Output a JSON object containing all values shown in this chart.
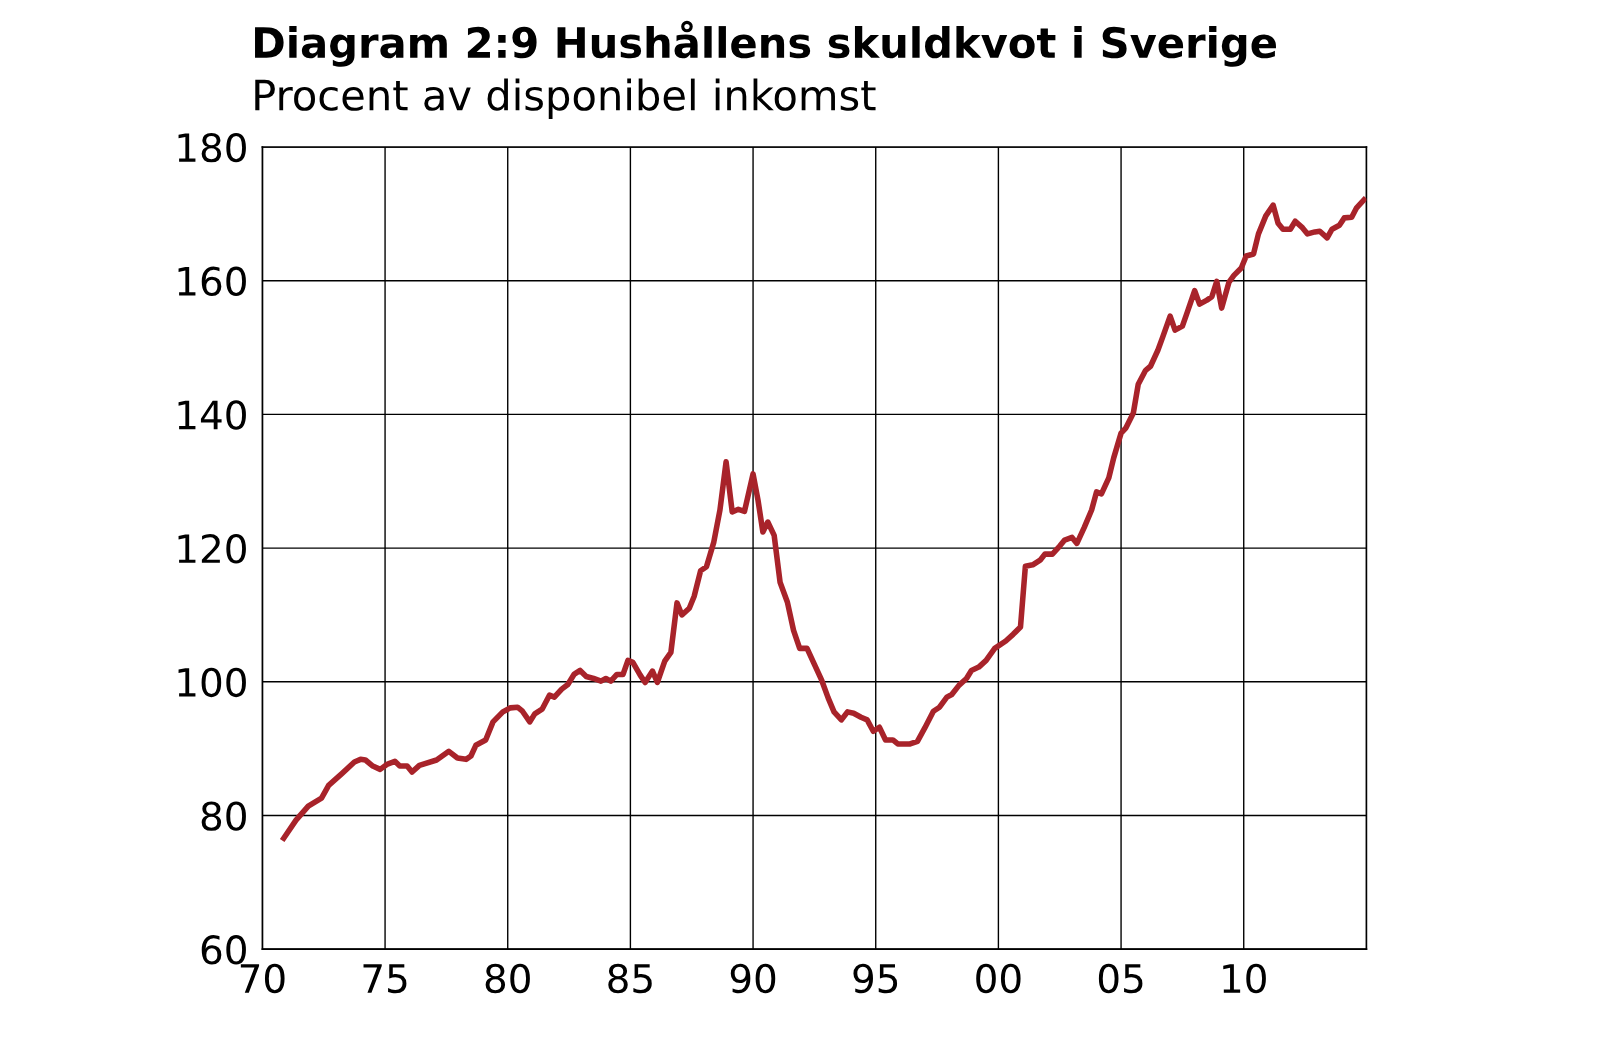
{
  "chart_data": {
    "type": "line",
    "title": "Diagram 2:9 Hushållens skuldkvot i Sverige",
    "subtitle": "Procent av disponibel inkomst",
    "xlim": [
      1970,
      2015
    ],
    "xticks": [
      {
        "value": 1970,
        "label": "70"
      },
      {
        "value": 1975,
        "label": "75"
      },
      {
        "value": 1980,
        "label": "80"
      },
      {
        "value": 1985,
        "label": "85"
      },
      {
        "value": 1990,
        "label": "90"
      },
      {
        "value": 1995,
        "label": "95"
      },
      {
        "value": 2000,
        "label": "00"
      },
      {
        "value": 2005,
        "label": "05"
      },
      {
        "value": 2010,
        "label": "10"
      }
    ],
    "ylim": [
      60,
      180
    ],
    "yticks": [
      60,
      80,
      100,
      120,
      140,
      160,
      180
    ],
    "grid": true,
    "legend": false,
    "marker": "none",
    "line_style": "solid",
    "series": [
      {
        "color": "#a8232a",
        "x": [
          1970.87,
          1971.37,
          1971.87,
          1972.41,
          1972.7,
          1973.25,
          1973.75,
          1974.0,
          1974.2,
          1974.5,
          1974.8,
          1975.1,
          1975.4,
          1975.6,
          1975.9,
          1976.1,
          1976.4,
          1977.1,
          1977.6,
          1977.95,
          1978.3,
          1978.5,
          1978.7,
          1979.1,
          1979.4,
          1979.8,
          1980.1,
          1980.4,
          1980.6,
          1980.9,
          1981.1,
          1981.4,
          1981.7,
          1981.9,
          1982.2,
          1982.45,
          1982.7,
          1982.95,
          1983.2,
          1983.5,
          1983.8,
          1984.0,
          1984.2,
          1984.45,
          1984.7,
          1984.9,
          1985.1,
          1985.4,
          1985.6,
          1985.9,
          1986.1,
          1986.4,
          1986.65,
          1986.9,
          1987.1,
          1987.4,
          1987.6,
          1987.86,
          1988.1,
          1988.4,
          1988.65,
          1988.9,
          1989.15,
          1989.4,
          1989.65,
          1990.0,
          1990.2,
          1990.4,
          1990.6,
          1990.86,
          1991.1,
          1991.4,
          1991.65,
          1991.9,
          1992.2,
          1992.5,
          1992.8,
          1993.06,
          1993.3,
          1993.6,
          1993.85,
          1994.1,
          1994.4,
          1994.65,
          1994.9,
          1995.15,
          1995.4,
          1995.7,
          1995.9,
          1996.4,
          1996.7,
          1997.0,
          1997.35,
          1997.6,
          1997.9,
          1998.1,
          1998.4,
          1998.7,
          1998.9,
          1999.2,
          1999.5,
          1999.85,
          2000.3,
          2000.6,
          2000.9,
          2001.1,
          2001.4,
          2001.7,
          2001.9,
          2002.2,
          2002.5,
          2002.7,
          2003.0,
          2003.2,
          2003.5,
          2003.8,
          2004.0,
          2004.2,
          2004.5,
          2004.7,
          2005.0,
          2005.2,
          2005.5,
          2005.7,
          2006.0,
          2006.2,
          2006.5,
          2006.7,
          2007.0,
          2007.2,
          2007.5,
          2007.7,
          2008.0,
          2008.2,
          2008.5,
          2008.7,
          2008.9,
          2009.1,
          2009.4,
          2009.6,
          2009.9,
          2010.1,
          2010.4,
          2010.6,
          2010.9,
          2011.2,
          2011.4,
          2011.6,
          2011.9,
          2012.1,
          2012.4,
          2012.6,
          2012.9,
          2013.1,
          2013.4,
          2013.6,
          2013.9,
          2014.1,
          2014.4,
          2014.6,
          2014.9
        ],
        "values": [
          76.6,
          79.3,
          81.4,
          82.6,
          84.5,
          86.3,
          88.0,
          88.4,
          88.3,
          87.4,
          86.9,
          87.7,
          88.1,
          87.4,
          87.4,
          86.5,
          87.5,
          88.3,
          89.6,
          88.6,
          88.4,
          88.9,
          90.5,
          91.3,
          94.0,
          95.5,
          96.1,
          96.2,
          95.6,
          94.0,
          95.2,
          95.9,
          98.0,
          97.7,
          98.9,
          99.6,
          101.1,
          101.7,
          100.8,
          100.5,
          100.1,
          100.5,
          100.1,
          101.1,
          101.1,
          103.2,
          102.9,
          101.0,
          99.9,
          101.6,
          99.9,
          103.1,
          104.4,
          111.8,
          110.0,
          111.0,
          112.8,
          116.6,
          117.2,
          120.9,
          125.7,
          132.9,
          125.4,
          125.8,
          125.5,
          131.1,
          127.2,
          122.4,
          123.9,
          121.9,
          114.9,
          111.9,
          107.7,
          105.0,
          105.0,
          102.6,
          100.2,
          97.6,
          95.5,
          94.3,
          95.5,
          95.3,
          94.7,
          94.3,
          92.6,
          93.2,
          91.3,
          91.3,
          90.7,
          90.7,
          91.1,
          93.1,
          95.6,
          96.2,
          97.7,
          98.1,
          99.5,
          100.5,
          101.7,
          102.2,
          103.2,
          105.0,
          106.1,
          107.1,
          108.2,
          117.3,
          117.5,
          118.2,
          119.1,
          119.1,
          120.3,
          121.2,
          121.6,
          120.7,
          123.1,
          125.7,
          128.4,
          128.1,
          130.5,
          133.5,
          137.2,
          138.0,
          140.2,
          144.5,
          146.6,
          147.2,
          149.6,
          151.6,
          154.7,
          152.6,
          153.2,
          155.3,
          158.5,
          156.5,
          157.1,
          157.6,
          159.9,
          155.9,
          159.8,
          160.8,
          161.9,
          163.7,
          164.0,
          167.0,
          169.7,
          171.3,
          168.6,
          167.7,
          167.7,
          168.9,
          167.9,
          167.0,
          167.3,
          167.4,
          166.4,
          167.7,
          168.3,
          169.4,
          169.5,
          170.9,
          172.1
        ]
      }
    ]
  }
}
